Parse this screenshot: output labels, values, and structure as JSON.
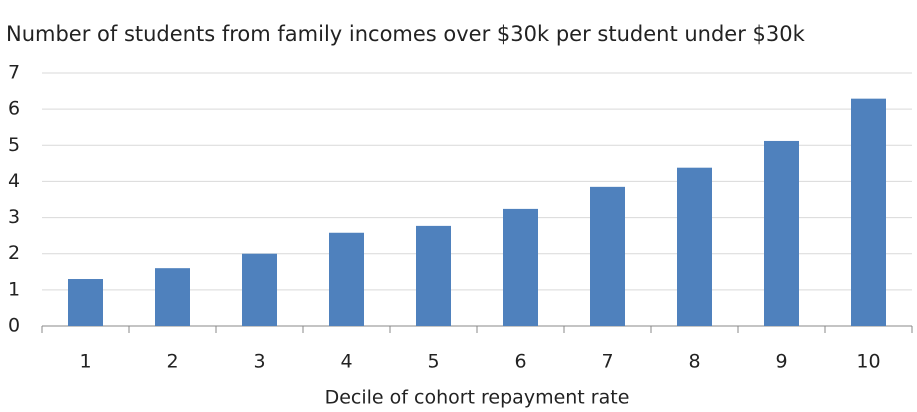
{
  "chart_data": {
    "type": "bar",
    "title": "Number of students from family incomes over $30k per student under $30k",
    "x_label": "Decile of cohort repayment rate",
    "categories": [
      "1",
      "2",
      "3",
      "4",
      "5",
      "6",
      "7",
      "8",
      "9",
      "10"
    ],
    "values": [
      1.3,
      1.6,
      2.0,
      2.58,
      2.77,
      3.24,
      3.85,
      4.38,
      5.12,
      6.29
    ],
    "color": "#4f81bd",
    "ylim": [
      0,
      7
    ],
    "yticks": [
      0,
      1,
      2,
      3,
      4,
      5,
      6,
      7
    ],
    "grid": true
  }
}
